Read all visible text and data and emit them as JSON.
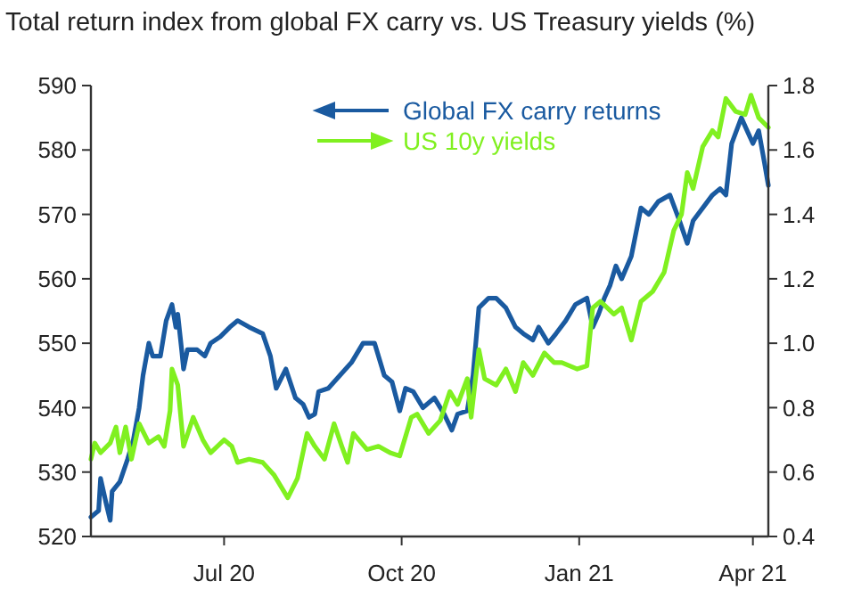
{
  "chart_data": {
    "type": "line",
    "title": "Total return index from global FX carry vs. US Treasury yields (%)",
    "xlim": [
      "2020-04-23",
      "2021-04-09"
    ],
    "xticks": [
      {
        "value": "2020-07-01",
        "label": "Jul 20"
      },
      {
        "value": "2020-10-01",
        "label": "Oct 20"
      },
      {
        "value": "2021-01-01",
        "label": "Jan 21"
      },
      {
        "value": "2021-04-01",
        "label": "Apr 21"
      }
    ],
    "ylim": [
      520,
      590
    ],
    "yticks": [
      520,
      530,
      540,
      550,
      560,
      570,
      580,
      590
    ],
    "y2lim": [
      0.4,
      1.8
    ],
    "y2ticks": [
      {
        "value": 0.4,
        "label": "0.4"
      },
      {
        "value": 0.6,
        "label": "0.6"
      },
      {
        "value": 0.8,
        "label": "0.8"
      },
      {
        "value": 1.0,
        "label": "1.0"
      },
      {
        "value": 1.2,
        "label": "1.2"
      },
      {
        "value": 1.4,
        "label": "1.4"
      },
      {
        "value": 1.6,
        "label": "1.6"
      },
      {
        "value": 1.8,
        "label": "1.8"
      }
    ],
    "grid": false,
    "legend": "top right",
    "marker": "none",
    "line_style": "solid",
    "series": [
      {
        "name": "Global FX carry returns",
        "color": "#1a5aa0",
        "axis": "y",
        "x": [
          "2020-04-23",
          "2020-04-27",
          "2020-04-28",
          "2020-05-01",
          "2020-05-03",
          "2020-05-04",
          "2020-05-08",
          "2020-05-12",
          "2020-05-15",
          "2020-05-18",
          "2020-05-20",
          "2020-05-23",
          "2020-05-25",
          "2020-05-29",
          "2020-06-01",
          "2020-06-04",
          "2020-06-06",
          "2020-06-07",
          "2020-06-09",
          "2020-06-10",
          "2020-06-12",
          "2020-06-17",
          "2020-06-21",
          "2020-06-24",
          "2020-06-29",
          "2020-07-04",
          "2020-07-08",
          "2020-07-14",
          "2020-07-21",
          "2020-07-25",
          "2020-07-28",
          "2020-08-02",
          "2020-08-07",
          "2020-08-11",
          "2020-08-14",
          "2020-08-17",
          "2020-08-19",
          "2020-08-24",
          "2020-08-30",
          "2020-09-05",
          "2020-09-11",
          "2020-09-17",
          "2020-09-22",
          "2020-09-26",
          "2020-09-30",
          "2020-10-03",
          "2020-10-07",
          "2020-10-12",
          "2020-10-18",
          "2020-10-23",
          "2020-10-27",
          "2020-10-30",
          "2020-11-04",
          "2020-11-07",
          "2020-11-10",
          "2020-11-15",
          "2020-11-19",
          "2020-11-24",
          "2020-11-29",
          "2020-12-03",
          "2020-12-08",
          "2020-12-11",
          "2020-12-16",
          "2020-12-20",
          "2020-12-25",
          "2020-12-30",
          "2021-01-05",
          "2021-01-08",
          "2021-01-11",
          "2021-01-14",
          "2021-01-17",
          "2021-01-20",
          "2021-01-23",
          "2021-01-28",
          "2021-02-02",
          "2021-02-06",
          "2021-02-11",
          "2021-02-17",
          "2021-02-22",
          "2021-02-26",
          "2021-03-01",
          "2021-03-06",
          "2021-03-11",
          "2021-03-15",
          "2021-03-18",
          "2021-03-21",
          "2021-03-26",
          "2021-03-29",
          "2021-04-01",
          "2021-04-04",
          "2021-04-07",
          "2021-04-09"
        ],
        "values": [
          523,
          524,
          529,
          525,
          522.5,
          527,
          528.5,
          532,
          535,
          540,
          545,
          550,
          548,
          548,
          553.5,
          556,
          552.5,
          554.5,
          549,
          546,
          549,
          549,
          548,
          550,
          551,
          552.5,
          553.5,
          552.5,
          551.5,
          548,
          543,
          546,
          541.5,
          540.5,
          538.5,
          539,
          542.5,
          543,
          545,
          547,
          550,
          550,
          545,
          544,
          539.5,
          543,
          542.5,
          540,
          541.5,
          539,
          536.5,
          539,
          539.5,
          545,
          555.5,
          557,
          557,
          555.5,
          552.5,
          551.5,
          550.5,
          552.5,
          550,
          551.5,
          553.5,
          556,
          557,
          552.5,
          554.5,
          557,
          559,
          562,
          560,
          563.5,
          571,
          570,
          572,
          573,
          569,
          565.5,
          569,
          571,
          573,
          574,
          573,
          581,
          585,
          583,
          581,
          583,
          578,
          574.5
        ]
      },
      {
        "name": "US 10y yields",
        "color": "#80f020",
        "axis": "y2",
        "x": [
          "2020-04-23",
          "2020-04-25",
          "2020-04-28",
          "2020-05-03",
          "2020-05-06",
          "2020-05-08",
          "2020-05-11",
          "2020-05-14",
          "2020-05-18",
          "2020-05-23",
          "2020-05-28",
          "2020-05-31",
          "2020-06-03",
          "2020-06-04",
          "2020-06-07",
          "2020-06-10",
          "2020-06-15",
          "2020-06-20",
          "2020-06-24",
          "2020-07-01",
          "2020-07-05",
          "2020-07-08",
          "2020-07-14",
          "2020-07-21",
          "2020-07-27",
          "2020-08-03",
          "2020-08-08",
          "2020-08-13",
          "2020-08-17",
          "2020-08-22",
          "2020-08-27",
          "2020-08-31",
          "2020-09-03",
          "2020-09-06",
          "2020-09-13",
          "2020-09-19",
          "2020-09-25",
          "2020-09-30",
          "2020-10-06",
          "2020-10-09",
          "2020-10-15",
          "2020-10-21",
          "2020-10-26",
          "2020-10-30",
          "2020-11-04",
          "2020-11-06",
          "2020-11-10",
          "2020-11-13",
          "2020-11-19",
          "2020-11-24",
          "2020-11-29",
          "2020-12-03",
          "2020-12-08",
          "2020-12-14",
          "2020-12-19",
          "2020-12-23",
          "2020-12-31",
          "2021-01-05",
          "2021-01-08",
          "2021-01-12",
          "2021-01-19",
          "2021-01-23",
          "2021-01-28",
          "2021-02-02",
          "2021-02-08",
          "2021-02-14",
          "2021-02-19",
          "2021-02-23",
          "2021-02-26",
          "2021-03-01",
          "2021-03-06",
          "2021-03-11",
          "2021-03-14",
          "2021-03-18",
          "2021-03-23",
          "2021-03-28",
          "2021-03-31",
          "2021-04-04",
          "2021-04-09"
        ],
        "values": [
          0.64,
          0.69,
          0.66,
          0.69,
          0.74,
          0.66,
          0.74,
          0.64,
          0.75,
          0.69,
          0.71,
          0.68,
          0.79,
          0.92,
          0.87,
          0.68,
          0.77,
          0.7,
          0.66,
          0.7,
          0.68,
          0.63,
          0.64,
          0.63,
          0.59,
          0.52,
          0.58,
          0.72,
          0.68,
          0.64,
          0.75,
          0.68,
          0.63,
          0.72,
          0.67,
          0.68,
          0.66,
          0.65,
          0.77,
          0.78,
          0.72,
          0.76,
          0.85,
          0.81,
          0.89,
          0.77,
          0.98,
          0.89,
          0.87,
          0.92,
          0.85,
          0.94,
          0.9,
          0.97,
          0.94,
          0.94,
          0.92,
          0.93,
          1.11,
          1.13,
          1.09,
          1.11,
          1.01,
          1.13,
          1.16,
          1.22,
          1.35,
          1.4,
          1.53,
          1.48,
          1.61,
          1.66,
          1.64,
          1.76,
          1.72,
          1.71,
          1.77,
          1.7,
          1.67
        ]
      }
    ]
  }
}
